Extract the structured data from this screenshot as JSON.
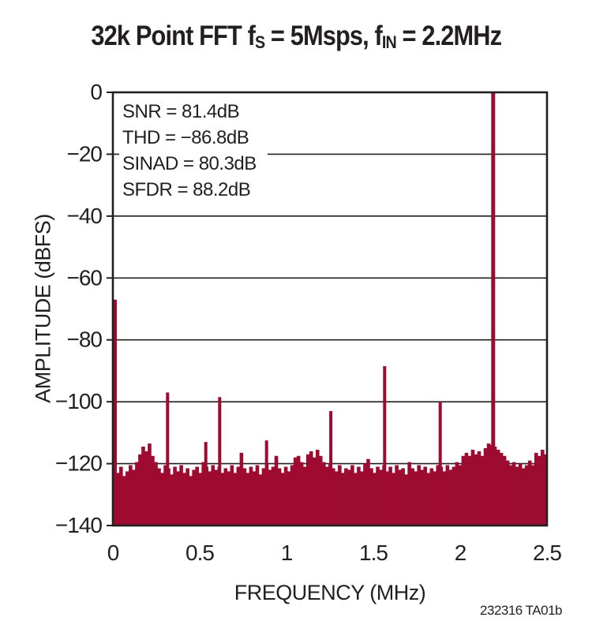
{
  "header": {
    "title_parts": {
      "t1": "32k Point FFT f",
      "s1": "S",
      "t2": " = 5Msps, f",
      "s2": "IN",
      "t3": " = 2.2MHz"
    }
  },
  "chart_data": {
    "type": "bar",
    "title": "32k Point FFT fS = 5Msps, fIN = 2.2MHz",
    "xlabel": "FREQUENCY (MHz)",
    "ylabel": "AMPLITUDE (dBFS)",
    "xlim": [
      0,
      2.5
    ],
    "ylim": [
      -140,
      0
    ],
    "xticks": [
      0,
      0.5,
      1,
      1.5,
      2,
      2.5
    ],
    "xtick_labels": [
      "0",
      "0.5",
      "1",
      "1.5",
      "2",
      "2.5"
    ],
    "yticks": [
      0,
      -20,
      -40,
      -60,
      -80,
      -100,
      -120,
      -140
    ],
    "ytick_labels": [
      "0",
      "−20",
      "−40",
      "−60",
      "−80",
      "−100",
      "−120",
      "−140"
    ],
    "grid": true,
    "legend": "none",
    "annotations": [
      "SNR = 81.4dB",
      "THD = −86.8dB",
      "SINAD = 80.3dB",
      "SFDR = 88.2dB"
    ],
    "series_color": "#9e0b30",
    "axis_color": "#231f20",
    "bin_width_mhz": 0.018248,
    "noise_floor_dbfs": [
      -121.5,
      -123,
      -121,
      -124,
      -122.5,
      -120.5,
      -122,
      -119.5,
      -117,
      -114.5,
      -116,
      -113.5,
      -117.5,
      -119.5,
      -121.5,
      -123,
      -120.5,
      -121.5,
      -123.5,
      -121,
      -122.5,
      -120.5,
      -123,
      -121.5,
      -124,
      -122,
      -121,
      -123,
      -119.5,
      -121,
      -122.5,
      -120.5,
      -122,
      -121,
      -123,
      -121.5,
      -122.5,
      -120.5,
      -123,
      -121,
      -116.5,
      -121.5,
      -123,
      -121,
      -122.5,
      -120.5,
      -123.5,
      -121.5,
      -120,
      -122,
      -121,
      -117.5,
      -121.5,
      -123,
      -121,
      -122.5,
      -120.5,
      -118,
      -117.5,
      -119.5,
      -121,
      -117,
      -116,
      -118,
      -115.5,
      -117.5,
      -119.5,
      -121,
      -120,
      -121.5,
      -122.5,
      -120.5,
      -123,
      -121.5,
      -122,
      -120.5,
      -123,
      -121,
      -122.5,
      -120,
      -118.5,
      -121.5,
      -123,
      -121,
      -122,
      -120.5,
      -122.5,
      -121,
      -123,
      -120.5,
      -122,
      -121.5,
      -123.5,
      -119.5,
      -121.5,
      -122.5,
      -120.5,
      -122,
      -121,
      -123,
      -121.5,
      -122.5,
      -120.5,
      -121,
      -122.5,
      -120.5,
      -122,
      -121,
      -119.5,
      -120.5,
      -117.5,
      -116.5,
      -117.5,
      -115.5,
      -117,
      -116,
      -117.5,
      -115,
      -113.5,
      -114,
      -114.5,
      -115.5,
      -116.5,
      -117.5,
      -119,
      -120.5,
      -119.5,
      -121,
      -120,
      -121.5,
      -120.5,
      -119,
      -120.5,
      -116.5,
      -117.5,
      -115.5,
      -117
    ],
    "spurs": [
      {
        "f_mhz": 0.005,
        "dbfs": -67
      },
      {
        "f_mhz": 0.315,
        "dbfs": -97
      },
      {
        "f_mhz": 0.535,
        "dbfs": -113
      },
      {
        "f_mhz": 0.615,
        "dbfs": -98.5
      },
      {
        "f_mhz": 0.885,
        "dbfs": -112.5
      },
      {
        "f_mhz": 1.255,
        "dbfs": -103
      },
      {
        "f_mhz": 1.565,
        "dbfs": -88.5
      },
      {
        "f_mhz": 1.885,
        "dbfs": -100
      }
    ],
    "fundamental": {
      "f_mhz": 2.19,
      "dbfs": 0
    }
  },
  "footer": {
    "part_number": "232316 TA01b"
  }
}
